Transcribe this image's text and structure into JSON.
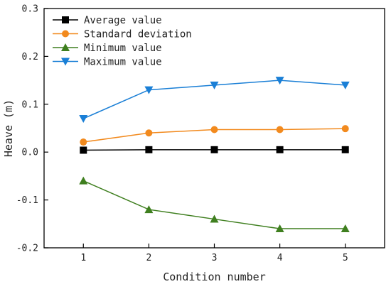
{
  "chart_data": {
    "type": "line",
    "xlabel": "Condition number",
    "ylabel": "Heave (m)",
    "x": [
      1,
      2,
      3,
      4,
      5
    ],
    "xlim": [
      0.4,
      5.6
    ],
    "ylim": [
      -0.2,
      0.3
    ],
    "xticks": [
      1,
      2,
      3,
      4,
      5
    ],
    "yticks": [
      -0.2,
      -0.1,
      0.0,
      0.1,
      0.2,
      0.3
    ],
    "ytick_labels": [
      "-0.2",
      "-0.1",
      "0.0",
      "0.1",
      "0.2",
      "0.3"
    ],
    "grid": false,
    "legend": "top-left",
    "series": [
      {
        "name": "Average value",
        "marker": "square",
        "color": "#000000",
        "values": [
          0.004,
          0.005,
          0.005,
          0.005,
          0.005
        ]
      },
      {
        "name": "Standard deviation",
        "marker": "circle",
        "color": "#f28a1e",
        "values": [
          0.021,
          0.04,
          0.047,
          0.047,
          0.049
        ]
      },
      {
        "name": "Minimum value",
        "marker": "triangle-up",
        "color": "#3f7f1f",
        "values": [
          -0.06,
          -0.12,
          -0.14,
          -0.16,
          -0.16
        ]
      },
      {
        "name": "Maximum value",
        "marker": "triangle-down",
        "color": "#1a7fd6",
        "values": [
          0.07,
          0.13,
          0.14,
          0.15,
          0.14
        ]
      }
    ]
  }
}
